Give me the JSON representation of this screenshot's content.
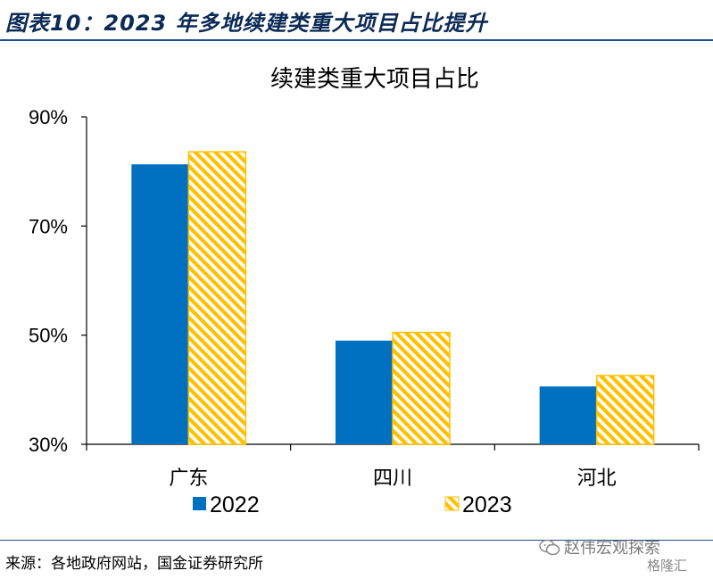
{
  "figure_title": "图表10：2023 年多地续建类重大项目占比提升",
  "source": "来源：各地政府网站，国金证券研究所",
  "watermark": {
    "main": "赵伟宏观探索",
    "sub": "格隆汇",
    "icon": "wechat-icon"
  },
  "colors": {
    "series_2022": "#0070c0",
    "series_2023": "#ffc000",
    "rule": "#1f4e8c",
    "title": "#0b2a55"
  },
  "chart_data": {
    "type": "bar",
    "title": "续建类重大项目占比",
    "xlabel": "",
    "ylabel": "",
    "categories": [
      "广东",
      "四川",
      "河北"
    ],
    "series": [
      {
        "name": "2022",
        "values": [
          81.3,
          49.0,
          40.6
        ],
        "color": "#0070c0",
        "pattern": "solid"
      },
      {
        "name": "2023",
        "values": [
          83.6,
          50.5,
          42.6
        ],
        "color": "#ffc000",
        "pattern": "diagonal-hatch"
      }
    ],
    "ylim": [
      30,
      90
    ],
    "yticks": [
      30,
      50,
      70,
      90
    ],
    "ytick_labels": [
      "30%",
      "50%",
      "70%",
      "90%"
    ],
    "grid": false,
    "legend": "bottom"
  }
}
